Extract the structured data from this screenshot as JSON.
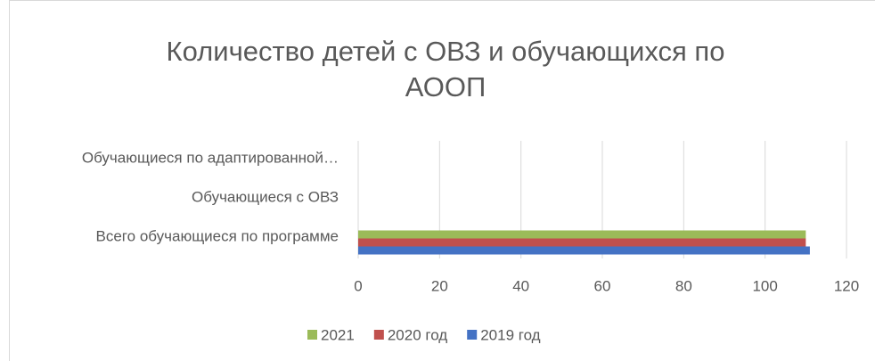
{
  "chart_data": {
    "type": "barh",
    "title": "Количество детей с ОВЗ и обучающихся по АООП",
    "categories": [
      "Всего обучающиеся по программе",
      "Обучающиеся с ОВЗ",
      "Обучающиеся по адаптированной…"
    ],
    "series": [
      {
        "name": "2019 год",
        "color": "#4472c4",
        "values": [
          111,
          0,
          0
        ]
      },
      {
        "name": "2020 год",
        "color": "#c0504d",
        "values": [
          110,
          0,
          0
        ]
      },
      {
        "name": "2021",
        "color": "#9bbb59",
        "values": [
          110,
          0,
          0
        ]
      }
    ],
    "xlim": [
      0,
      120
    ],
    "xticks": [
      0,
      20,
      40,
      60,
      80,
      100,
      120
    ],
    "grid": true,
    "legend": "bottom"
  }
}
